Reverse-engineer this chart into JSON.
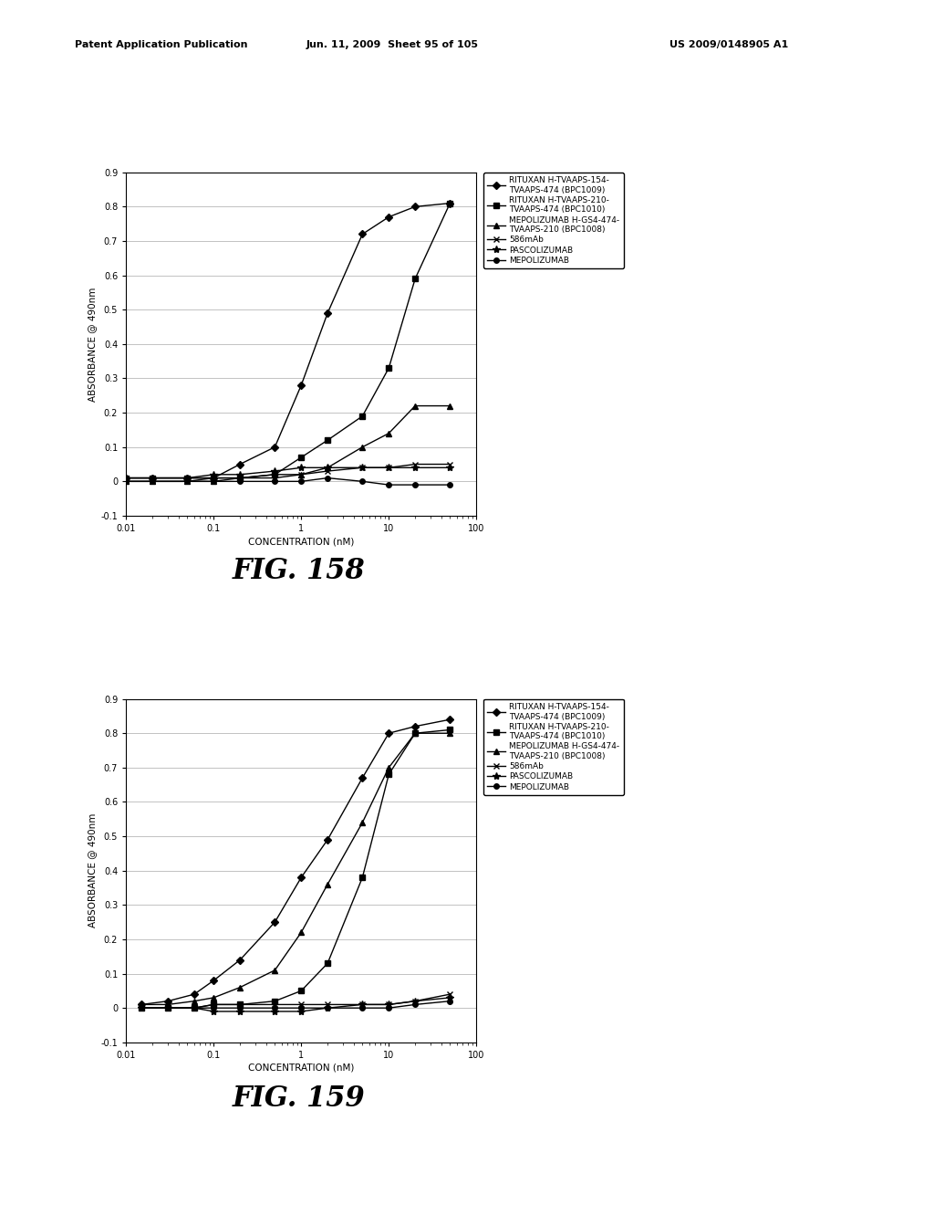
{
  "fig158": {
    "title": "FIG. 158",
    "series": [
      {
        "label": "RITUXAN H-TVAAPS-154-\nTVAAPS-474 (BPC1009)",
        "marker": "D",
        "x": [
          0.01,
          0.02,
          0.05,
          0.1,
          0.2,
          0.5,
          1.0,
          2.0,
          5.0,
          10.0,
          20.0,
          50.0
        ],
        "y": [
          0.01,
          0.01,
          0.01,
          0.01,
          0.05,
          0.1,
          0.28,
          0.49,
          0.72,
          0.77,
          0.8,
          0.81
        ],
        "linestyle": "-",
        "markersize": 4
      },
      {
        "label": "RITUXAN H-TVAAPS-210-\nTVAAPS-474 (BPC1010)",
        "marker": "s",
        "x": [
          0.01,
          0.02,
          0.05,
          0.1,
          0.2,
          0.5,
          1.0,
          2.0,
          5.0,
          10.0,
          20.0,
          50.0
        ],
        "y": [
          0.01,
          0.01,
          0.01,
          0.01,
          0.01,
          0.02,
          0.07,
          0.12,
          0.19,
          0.33,
          0.59,
          0.81
        ],
        "linestyle": "-",
        "markersize": 4
      },
      {
        "label": "MEPOLIZUMAB H-GS4-474-\nTVAAPS-210 (BPC1008)",
        "marker": "^",
        "x": [
          0.01,
          0.02,
          0.05,
          0.1,
          0.2,
          0.5,
          1.0,
          2.0,
          5.0,
          10.0,
          20.0,
          50.0
        ],
        "y": [
          0.0,
          0.0,
          0.0,
          0.0,
          0.01,
          0.01,
          0.02,
          0.04,
          0.1,
          0.14,
          0.22,
          0.22
        ],
        "linestyle": "-",
        "markersize": 4
      },
      {
        "label": "586mAb",
        "marker": "x",
        "x": [
          0.01,
          0.02,
          0.05,
          0.1,
          0.2,
          0.5,
          1.0,
          2.0,
          5.0,
          10.0,
          20.0,
          50.0
        ],
        "y": [
          0.0,
          0.0,
          0.0,
          0.01,
          0.01,
          0.02,
          0.02,
          0.03,
          0.04,
          0.04,
          0.05,
          0.05
        ],
        "linestyle": "-",
        "markersize": 5
      },
      {
        "label": "PASCOLIZUMAB",
        "marker": "*",
        "x": [
          0.01,
          0.02,
          0.05,
          0.1,
          0.2,
          0.5,
          1.0,
          2.0,
          5.0,
          10.0,
          20.0,
          50.0
        ],
        "y": [
          0.01,
          0.01,
          0.01,
          0.02,
          0.02,
          0.03,
          0.04,
          0.04,
          0.04,
          0.04,
          0.04,
          0.04
        ],
        "linestyle": "-",
        "markersize": 6
      },
      {
        "label": "MEPOLIZUMAB",
        "marker": "o",
        "x": [
          0.01,
          0.02,
          0.05,
          0.1,
          0.2,
          0.5,
          1.0,
          2.0,
          5.0,
          10.0,
          20.0,
          50.0
        ],
        "y": [
          0.0,
          0.0,
          0.0,
          0.0,
          0.0,
          0.0,
          0.0,
          0.01,
          0.0,
          -0.01,
          -0.01,
          -0.01
        ],
        "linestyle": "-",
        "markersize": 4
      }
    ],
    "xlabel": "CONCENTRATION (nM)",
    "ylabel": "ABSORBANCE @ 490nm",
    "xlim": [
      0.01,
      100
    ],
    "ylim": [
      -0.1,
      0.9
    ],
    "yticks": [
      -0.1,
      0.0,
      0.1,
      0.2,
      0.3,
      0.4,
      0.5,
      0.6,
      0.7,
      0.8,
      0.9
    ]
  },
  "fig159": {
    "title": "FIG. 159",
    "series": [
      {
        "label": "RITUXAN H-TVAAPS-154-\nTVAAPS-474 (BPC1009)",
        "marker": "D",
        "x": [
          0.015,
          0.03,
          0.06,
          0.1,
          0.2,
          0.5,
          1.0,
          2.0,
          5.0,
          10.0,
          20.0,
          50.0
        ],
        "y": [
          0.01,
          0.02,
          0.04,
          0.08,
          0.14,
          0.25,
          0.38,
          0.49,
          0.67,
          0.8,
          0.82,
          0.84
        ],
        "linestyle": "-",
        "markersize": 4
      },
      {
        "label": "RITUXAN H-TVAAPS-210-\nTVAAPS-474 (BPC1010)",
        "marker": "s",
        "x": [
          0.015,
          0.03,
          0.06,
          0.1,
          0.2,
          0.5,
          1.0,
          2.0,
          5.0,
          10.0,
          20.0,
          50.0
        ],
        "y": [
          0.0,
          0.0,
          0.0,
          0.01,
          0.01,
          0.02,
          0.05,
          0.13,
          0.38,
          0.68,
          0.8,
          0.81
        ],
        "linestyle": "-",
        "markersize": 4
      },
      {
        "label": "MEPOLIZUMAB H-GS4-474-\nTVAAPS-210 (BPC1008)",
        "marker": "^",
        "x": [
          0.015,
          0.03,
          0.06,
          0.1,
          0.2,
          0.5,
          1.0,
          2.0,
          5.0,
          10.0,
          20.0,
          50.0
        ],
        "y": [
          0.01,
          0.01,
          0.02,
          0.03,
          0.06,
          0.11,
          0.22,
          0.36,
          0.54,
          0.7,
          0.8,
          0.8
        ],
        "linestyle": "-",
        "markersize": 4
      },
      {
        "label": "586mAb",
        "marker": "x",
        "x": [
          0.015,
          0.03,
          0.06,
          0.1,
          0.2,
          0.5,
          1.0,
          2.0,
          5.0,
          10.0,
          20.0,
          50.0
        ],
        "y": [
          0.0,
          0.0,
          0.0,
          0.01,
          0.01,
          0.01,
          0.01,
          0.01,
          0.01,
          0.01,
          0.02,
          0.04
        ],
        "linestyle": "-",
        "markersize": 5
      },
      {
        "label": "PASCOLIZUMAB",
        "marker": "*",
        "x": [
          0.015,
          0.03,
          0.06,
          0.1,
          0.2,
          0.5,
          1.0,
          2.0,
          5.0,
          10.0,
          20.0,
          50.0
        ],
        "y": [
          0.0,
          0.0,
          0.0,
          -0.01,
          -0.01,
          -0.01,
          -0.01,
          0.0,
          0.01,
          0.01,
          0.02,
          0.03
        ],
        "linestyle": "-",
        "markersize": 6
      },
      {
        "label": "MEPOLIZUMAB",
        "marker": "o",
        "x": [
          0.015,
          0.03,
          0.06,
          0.1,
          0.2,
          0.5,
          1.0,
          2.0,
          5.0,
          10.0,
          20.0,
          50.0
        ],
        "y": [
          0.0,
          0.0,
          0.0,
          0.0,
          0.0,
          0.0,
          0.0,
          0.0,
          0.0,
          0.0,
          0.01,
          0.02
        ],
        "linestyle": "-",
        "markersize": 4
      }
    ],
    "xlabel": "CONCENTRATION (nM)",
    "ylabel": "ABSORBANCE @ 490nm",
    "xlim": [
      0.01,
      100
    ],
    "ylim": [
      -0.1,
      0.9
    ],
    "yticks": [
      -0.1,
      0.0,
      0.1,
      0.2,
      0.3,
      0.4,
      0.5,
      0.6,
      0.7,
      0.8,
      0.9
    ]
  },
  "header_left": "Patent Application Publication",
  "header_mid": "Jun. 11, 2009  Sheet 95 of 105",
  "header_right": "US 2009/0148905 A1",
  "bg_color": "#ffffff",
  "line_color": "#000000",
  "legend_fontsize": 6.5,
  "axis_fontsize": 7.5,
  "tick_fontsize": 7,
  "fig_label_fontsize": 22
}
